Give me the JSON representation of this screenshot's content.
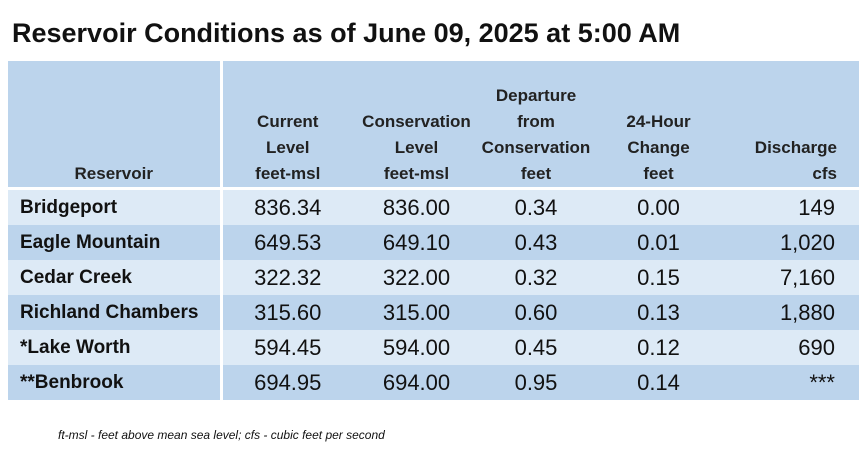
{
  "title": "Reservoir Conditions as of June 09, 2025 at 5:00 AM",
  "headers": {
    "reservoir": [
      "Reservoir"
    ],
    "current": [
      "Current",
      "Level",
      "feet-msl"
    ],
    "conservation": [
      "Conservation",
      "Level",
      "feet-msl"
    ],
    "departure": [
      "Departure",
      "from",
      "Conservation",
      "feet"
    ],
    "change": [
      "24-Hour",
      "Change",
      "feet"
    ],
    "discharge": [
      "Discharge",
      "cfs"
    ]
  },
  "rows": [
    {
      "name": "Bridgeport",
      "current": "836.34",
      "conservation": "836.00",
      "departure": "0.34",
      "change": "0.00",
      "discharge": "149"
    },
    {
      "name": "Eagle Mountain",
      "current": "649.53",
      "conservation": "649.10",
      "departure": "0.43",
      "change": "0.01",
      "discharge": "1,020"
    },
    {
      "name": "Cedar Creek",
      "current": "322.32",
      "conservation": "322.00",
      "departure": "0.32",
      "change": "0.15",
      "discharge": "7,160"
    },
    {
      "name": "Richland Chambers",
      "current": "315.60",
      "conservation": "315.00",
      "departure": "0.60",
      "change": "0.13",
      "discharge": "1,880"
    },
    {
      "name": "*Lake Worth",
      "current": "594.45",
      "conservation": "594.00",
      "departure": "0.45",
      "change": "0.12",
      "discharge": "690"
    },
    {
      "name": "**Benbrook",
      "current": "694.95",
      "conservation": "694.00",
      "departure": "0.95",
      "change": "0.14",
      "discharge": "***"
    }
  ],
  "footnote": "ft-msl - feet above mean sea level; cfs - cubic feet per second",
  "colors": {
    "header_bg": "#bcd4ec",
    "row_light": "#ddeaf6",
    "row_dark": "#bcd4ec"
  }
}
